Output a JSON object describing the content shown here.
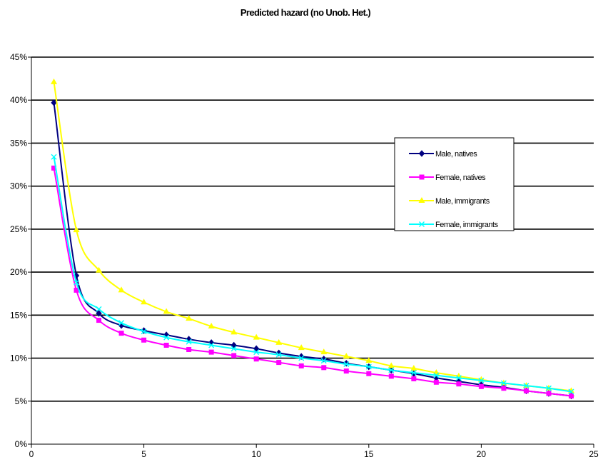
{
  "chart_data": {
    "type": "line",
    "title": "Predicted hazard (no Unob. Het.)",
    "xlabel": "",
    "ylabel": "",
    "xlim": [
      0,
      25
    ],
    "ylim": [
      0,
      0.45
    ],
    "x_ticks": [
      0,
      5,
      10,
      15,
      20,
      25
    ],
    "y_ticks": [
      0,
      0.05,
      0.1,
      0.15,
      0.2,
      0.25,
      0.3,
      0.35,
      0.4,
      0.45
    ],
    "x_tick_labels": [
      "0",
      "5",
      "10",
      "15",
      "20",
      "25"
    ],
    "y_tick_labels": [
      "0%",
      "5%",
      "10%",
      "15%",
      "20%",
      "25%",
      "30%",
      "35%",
      "40%",
      "45%"
    ],
    "grid": "horizontal",
    "legend_position": "right",
    "x": [
      1,
      2,
      3,
      4,
      5,
      6,
      7,
      8,
      9,
      10,
      11,
      12,
      13,
      14,
      15,
      16,
      17,
      18,
      19,
      20,
      21,
      22,
      23,
      24
    ],
    "series": [
      {
        "name": "Male, natives",
        "color": "#000080",
        "marker": "diamond",
        "values": [
          0.397,
          0.196,
          0.152,
          0.138,
          0.132,
          0.127,
          0.122,
          0.118,
          0.115,
          0.111,
          0.106,
          0.102,
          0.099,
          0.094,
          0.09,
          0.086,
          0.082,
          0.077,
          0.073,
          0.069,
          0.066,
          0.062,
          0.059,
          0.056
        ]
      },
      {
        "name": "Female, natives",
        "color": "#FF00FF",
        "marker": "square",
        "values": [
          0.321,
          0.179,
          0.144,
          0.129,
          0.121,
          0.115,
          0.11,
          0.107,
          0.103,
          0.099,
          0.095,
          0.091,
          0.089,
          0.085,
          0.082,
          0.079,
          0.076,
          0.072,
          0.07,
          0.067,
          0.065,
          0.062,
          0.059,
          0.056
        ]
      },
      {
        "name": "Male, immigrants",
        "color": "#FFFF00",
        "marker": "triangle",
        "values": [
          0.421,
          0.249,
          0.202,
          0.179,
          0.165,
          0.154,
          0.146,
          0.137,
          0.13,
          0.124,
          0.118,
          0.112,
          0.107,
          0.102,
          0.097,
          0.091,
          0.088,
          0.083,
          0.079,
          0.075,
          0.071,
          0.068,
          0.065,
          0.062
        ]
      },
      {
        "name": "Female, immigrants",
        "color": "#00FFFF",
        "marker": "x",
        "values": [
          0.334,
          0.188,
          0.157,
          0.141,
          0.131,
          0.124,
          0.119,
          0.115,
          0.111,
          0.107,
          0.104,
          0.1,
          0.097,
          0.093,
          0.09,
          0.086,
          0.083,
          0.08,
          0.077,
          0.074,
          0.071,
          0.068,
          0.065,
          0.061
        ]
      }
    ]
  }
}
